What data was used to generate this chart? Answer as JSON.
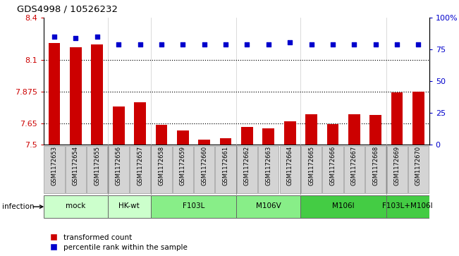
{
  "title": "GDS4998 / 10526232",
  "samples": [
    "GSM1172653",
    "GSM1172654",
    "GSM1172655",
    "GSM1172656",
    "GSM1172657",
    "GSM1172658",
    "GSM1172659",
    "GSM1172660",
    "GSM1172661",
    "GSM1172662",
    "GSM1172663",
    "GSM1172664",
    "GSM1172665",
    "GSM1172666",
    "GSM1172667",
    "GSM1172668",
    "GSM1172669",
    "GSM1172670"
  ],
  "transformed_count": [
    8.22,
    8.19,
    8.21,
    7.77,
    7.8,
    7.64,
    7.6,
    7.535,
    7.545,
    7.625,
    7.615,
    7.665,
    7.718,
    7.645,
    7.718,
    7.712,
    7.872,
    7.875
  ],
  "percentile_rank": [
    85,
    84,
    85,
    79,
    79,
    79,
    79,
    79,
    79,
    79,
    79,
    81,
    79,
    79,
    79,
    79,
    79,
    79
  ],
  "ylim_left": [
    7.5,
    8.4
  ],
  "ylim_right": [
    0,
    100
  ],
  "yticks_left": [
    7.5,
    7.65,
    7.875,
    8.1,
    8.4
  ],
  "ytick_labels_left": [
    "7.5",
    "7.65",
    "7.875",
    "8.1",
    "8.4"
  ],
  "yticks_right": [
    0,
    25,
    50,
    75,
    100
  ],
  "ytick_labels_right": [
    "0",
    "25",
    "50",
    "75",
    "100%"
  ],
  "hlines": [
    7.65,
    7.875,
    8.1
  ],
  "bar_color": "#cc0000",
  "dot_color": "#0000cc",
  "groups": [
    {
      "label": "mock",
      "start": 0,
      "end": 3,
      "color": "#ccffcc"
    },
    {
      "label": "HK-wt",
      "start": 3,
      "end": 5,
      "color": "#ccffcc"
    },
    {
      "label": "F103L",
      "start": 5,
      "end": 9,
      "color": "#88ee88"
    },
    {
      "label": "M106V",
      "start": 9,
      "end": 12,
      "color": "#88ee88"
    },
    {
      "label": "M106I",
      "start": 12,
      "end": 16,
      "color": "#44cc44"
    },
    {
      "label": "F103L+M106I",
      "start": 16,
      "end": 18,
      "color": "#44cc44"
    }
  ],
  "infection_label": "infection",
  "legend_red": "transformed count",
  "legend_blue": "percentile rank within the sample",
  "bar_width": 0.55,
  "sample_box_color": "#d4d4d4",
  "sample_box_edge": "#999999"
}
